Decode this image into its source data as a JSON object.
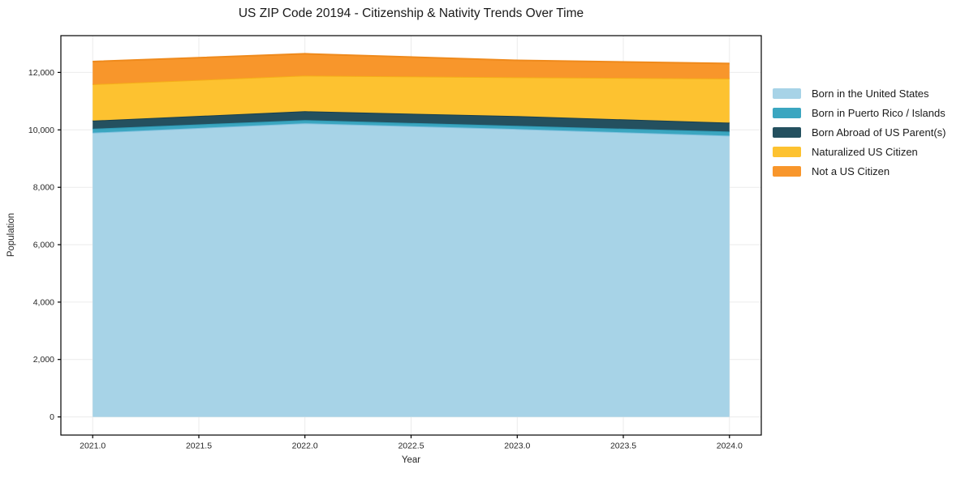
{
  "page": {
    "background": "#ffffff"
  },
  "chart_data": {
    "type": "area",
    "stacked": true,
    "title": "US ZIP Code 20194 - Citizenship & Nativity Trends Over Time",
    "xlabel": "Year",
    "ylabel": "Population",
    "x": [
      2021,
      2022,
      2023,
      2024
    ],
    "series": [
      {
        "name": "Born in the United States",
        "values": [
          9900,
          10230,
          10030,
          9800
        ],
        "fill": "#a7d3e7",
        "line": "#7fc0de"
      },
      {
        "name": "Born in Puerto Rico / Islands",
        "values": [
          140,
          110,
          110,
          140
        ],
        "fill": "#3ba6c0",
        "line": "#2e9ab5"
      },
      {
        "name": "Born Abroad of US Parent(s)",
        "values": [
          280,
          310,
          340,
          310
        ],
        "fill": "#24505f",
        "line": "#183f4d"
      },
      {
        "name": "Naturalized US Citizen",
        "values": [
          1270,
          1240,
          1350,
          1540
        ],
        "fill": "#fdc230",
        "line": "#f5ad18"
      },
      {
        "name": "Not a US Citizen",
        "values": [
          790,
          760,
          590,
          520
        ],
        "fill": "#f8962b",
        "line": "#ef8a1c"
      }
    ],
    "xlim": [
      2020.85,
      2024.15
    ],
    "ylim": [
      -632,
      13282
    ],
    "x_ticks": [
      {
        "value": 2021.0,
        "label": "2021.0"
      },
      {
        "value": 2021.5,
        "label": "2021.5"
      },
      {
        "value": 2022.0,
        "label": "2022.0"
      },
      {
        "value": 2022.5,
        "label": "2022.5"
      },
      {
        "value": 2023.0,
        "label": "2023.0"
      },
      {
        "value": 2023.5,
        "label": "2023.5"
      },
      {
        "value": 2024.0,
        "label": "2024.0"
      }
    ],
    "y_ticks": [
      {
        "value": 0,
        "label": "0"
      },
      {
        "value": 2000,
        "label": "2,000"
      },
      {
        "value": 4000,
        "label": "4,000"
      },
      {
        "value": 6000,
        "label": "6,000"
      },
      {
        "value": 8000,
        "label": "8,000"
      },
      {
        "value": 10000,
        "label": "10,000"
      },
      {
        "value": 12000,
        "label": "12,000"
      }
    ],
    "grid": true,
    "legend_position": "right"
  }
}
